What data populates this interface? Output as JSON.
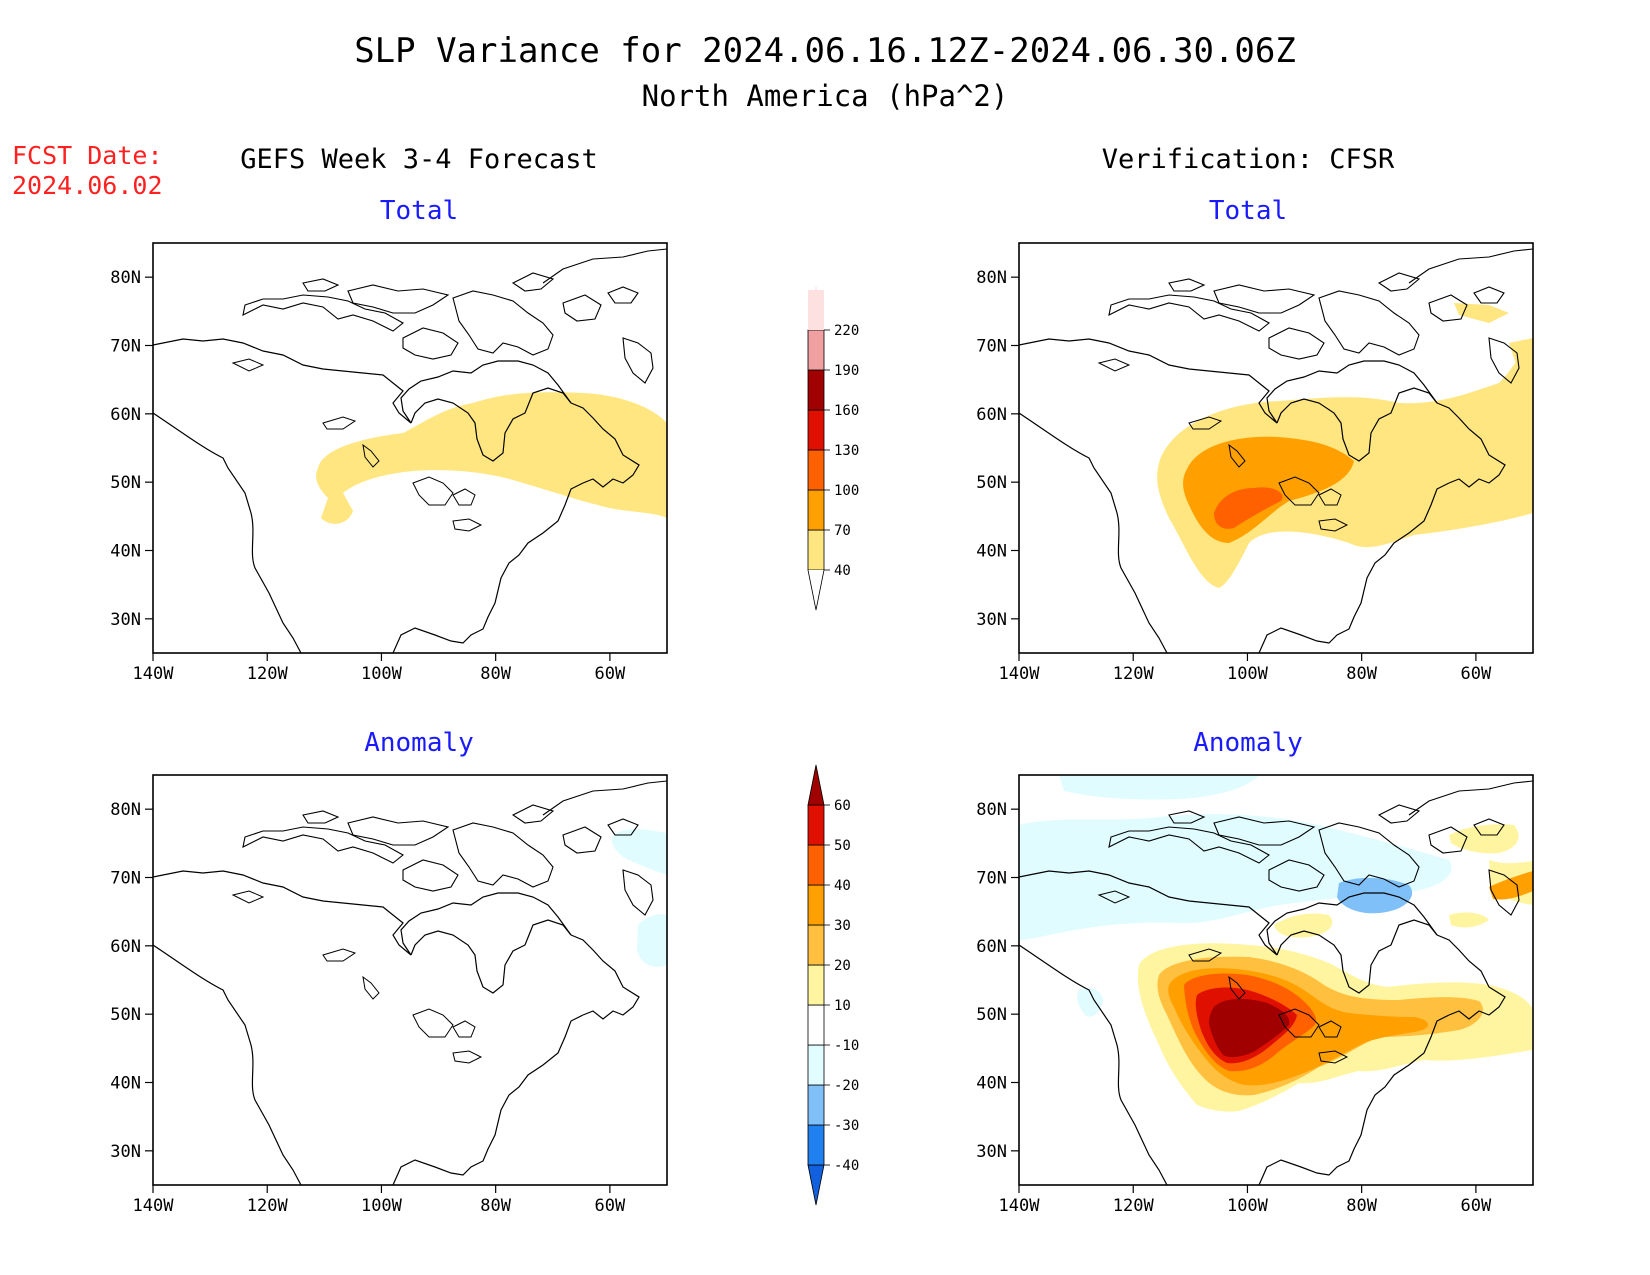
{
  "title": {
    "line1": "SLP Variance for 2024.06.16.12Z-2024.06.30.06Z",
    "line2": "North America (hPa^2)"
  },
  "fcst_date": {
    "label": "FCST Date:",
    "value": "2024.06.02"
  },
  "columns": {
    "left": "GEFS Week 3-4 Forecast",
    "right": "Verification: CFSR"
  },
  "panels": [
    {
      "id": "fcst-total",
      "subtitle": "Total"
    },
    {
      "id": "verif-total",
      "subtitle": "Total"
    },
    {
      "id": "fcst-anomaly",
      "subtitle": "Anomaly"
    },
    {
      "id": "verif-anomaly",
      "subtitle": "Anomaly"
    }
  ],
  "axes": {
    "lat_labels": [
      "80N",
      "70N",
      "60N",
      "50N",
      "40N",
      "30N"
    ],
    "lon_labels": [
      "140W",
      "120W",
      "100W",
      "80W",
      "60W"
    ]
  },
  "colors": {
    "subtitle": "#1a1aff",
    "fcst_date": "#ff2020",
    "coast": "#000000"
  },
  "legends": {
    "total": {
      "labels": [
        "40",
        "70",
        "100",
        "130",
        "160",
        "190",
        "220"
      ],
      "colors": [
        "#ffe680",
        "#ffa000",
        "#ff6000",
        "#e01000",
        "#a00000",
        "#f0a0a0",
        "#fde0e0"
      ]
    },
    "anomaly": {
      "labels": [
        "-40",
        "-30",
        "-20",
        "-10",
        "10",
        "20",
        "30",
        "40",
        "50",
        "60"
      ],
      "colors": [
        "#1060e0",
        "#2080f0",
        "#80c0f8",
        "#e0fcff",
        "#ffffff",
        "#fff5a0",
        "#ffc040",
        "#ffa000",
        "#ff6000",
        "#e01000",
        "#a00000"
      ]
    }
  }
}
